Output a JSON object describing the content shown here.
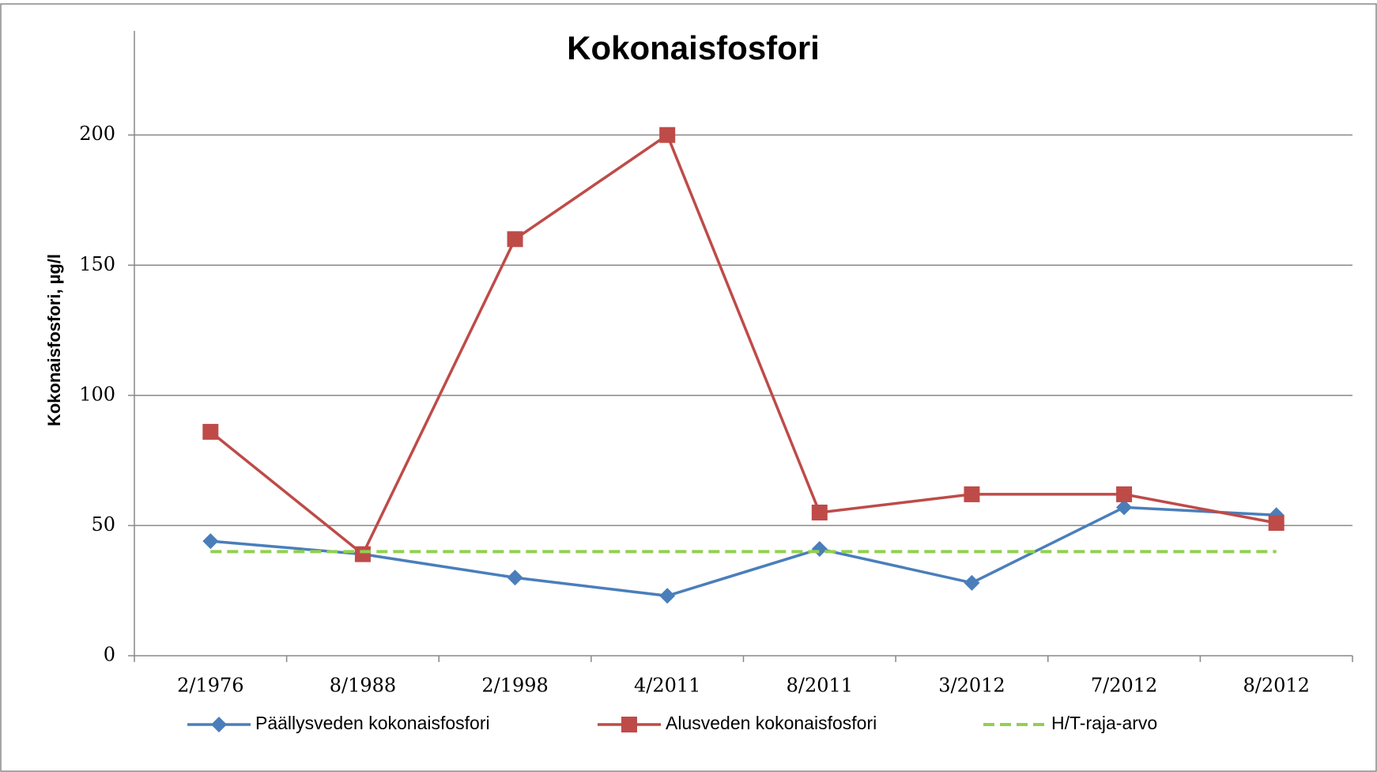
{
  "chart_data": {
    "type": "line",
    "title": "Kokonaisfosfori",
    "y_label": "Kokonaisfosfori, µg/l",
    "categories": [
      "2/1976",
      "8/1988",
      "2/1998",
      "4/2011",
      "8/2011",
      "3/2012",
      "7/2012",
      "8/2012"
    ],
    "series": [
      {
        "name": "Päällysveden kokonaisfosfori",
        "color": "#4a7ebb",
        "marker": "diamond",
        "values": [
          44,
          39,
          30,
          23,
          41,
          28,
          57,
          54
        ]
      },
      {
        "name": "Alusveden kokonaisfosfori",
        "color": "#be4b48",
        "marker": "square",
        "values": [
          86,
          39,
          160,
          200,
          55,
          62,
          62,
          51
        ]
      },
      {
        "name": "H/T-raja-arvo",
        "color": "#92d050",
        "dash": true,
        "values": [
          40,
          40,
          40,
          40,
          40,
          40,
          40,
          40
        ]
      }
    ],
    "ylim": [
      0,
      240
    ],
    "yticks": [
      0,
      50,
      100,
      150,
      200
    ],
    "grid": true,
    "legend": "bottom"
  }
}
